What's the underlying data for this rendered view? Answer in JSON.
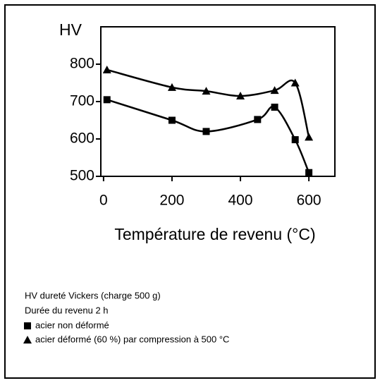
{
  "chart_data": {
    "type": "line",
    "ylabel": "HV",
    "xlabel": "Température de revenu (°C)",
    "xlim": [
      -8,
      676
    ],
    "xticks": [
      0,
      200,
      400,
      600
    ],
    "ylim": [
      500,
      900
    ],
    "yticks": [
      500,
      600,
      700,
      800
    ],
    "notes": [
      "HV  dureté Vickers (charge 500 g)",
      "Durée du revenu 2 h"
    ],
    "series": [
      {
        "name": "acier non déformé",
        "marker": "square",
        "color": "#000000",
        "x": [
          10,
          200,
          300,
          450,
          500,
          560,
          600
        ],
        "values": [
          705,
          650,
          620,
          652,
          685,
          598,
          510
        ]
      },
      {
        "name": "acier déformé (60 %) par compression à 500 °C",
        "marker": "triangle",
        "color": "#000000",
        "x": [
          10,
          200,
          300,
          400,
          500,
          560,
          600
        ],
        "values": [
          785,
          738,
          728,
          715,
          730,
          750,
          605
        ]
      }
    ]
  }
}
